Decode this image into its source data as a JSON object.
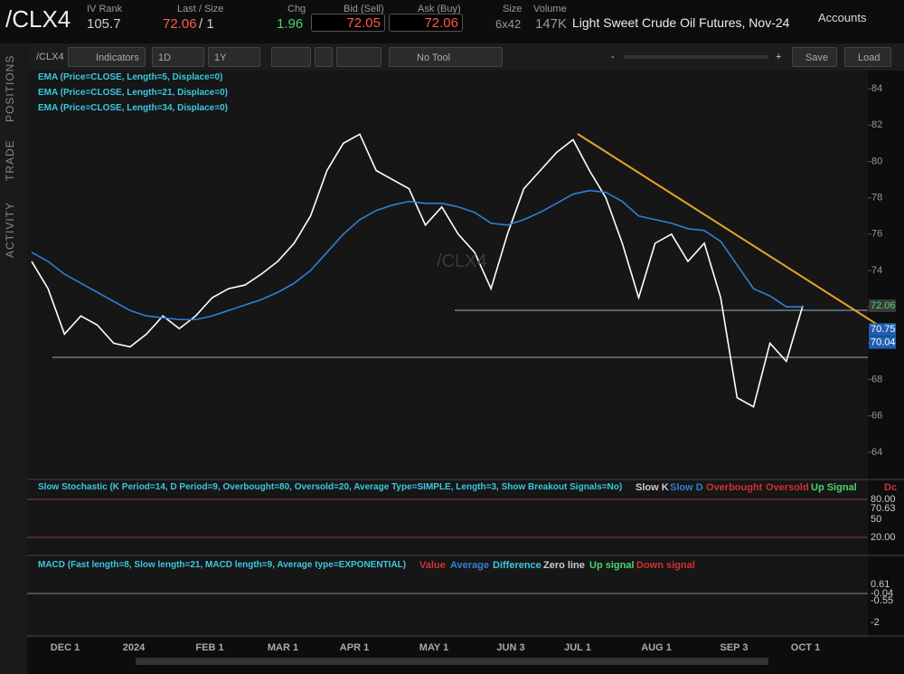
{
  "header": {
    "symbol": "/CLX4",
    "iv_rank_label": "IV Rank",
    "iv_rank": "105.7",
    "last_label": "Last / Size",
    "last": "72.06",
    "size_suffix": "/ 1",
    "chg_label": "Chg",
    "chg": "1.96",
    "bid_label": "Bid (Sell)",
    "bid": "72.05",
    "ask_label": "Ask (Buy)",
    "ask": "72.06",
    "size_label": "Size",
    "size": "6x42",
    "volume_label": "Volume",
    "volume": "147K",
    "description": "Light Sweet Crude Oil Futures, Nov-24",
    "accounts": "Accounts"
  },
  "toolbar": {
    "symbol": "/CLX4",
    "indicators": "Indicators",
    "interval": "1D",
    "range": "1Y",
    "tool": "No Tool",
    "zoom_minus": "-",
    "zoom_plus": "+",
    "save": "Save",
    "load": "Load"
  },
  "sidebar": [
    "POSITIONS",
    "TRADE",
    "ACTIVITY"
  ],
  "studies": [
    "EMA (Price=CLOSE, Length=5, Displace=0)",
    "EMA (Price=CLOSE, Length=21, Displace=0)",
    "EMA (Price=CLOSE, Length=34, Displace=0)"
  ],
  "watermark": "/CLX4",
  "chart_data": {
    "type": "line",
    "ylim": [
      62.9,
      85
    ],
    "yticks": [
      64,
      66,
      68,
      70,
      72,
      74,
      76,
      78,
      80,
      82,
      84
    ],
    "x_labels": [
      "DEC 1",
      "2024",
      "FEB 1",
      "MAR 1",
      "APR 1",
      "MAY 1",
      "JUN 3",
      "JUL 1",
      "AUG 1",
      "SEP 3",
      "OCT 1"
    ],
    "series": [
      {
        "color": "#ffffff",
        "values": [
          74.5,
          73,
          70.5,
          71.5,
          71,
          70,
          69.8,
          70.5,
          71.5,
          70.8,
          71.5,
          72.5,
          73,
          73.2,
          73.8,
          74.5,
          75.5,
          77,
          79.5,
          81,
          81.5,
          79.5,
          79,
          78.5,
          76.5,
          77.5,
          76,
          75,
          73,
          76,
          78.5,
          79.5,
          80.5,
          81.2,
          79.5,
          78,
          75.5,
          72.5,
          75.5,
          76,
          74.5,
          75.5,
          72.5,
          67,
          66.5,
          70,
          69,
          72.06
        ]
      },
      {
        "color": "#2f7fd8",
        "values": [
          75,
          74.5,
          73.8,
          73.3,
          72.8,
          72.3,
          71.8,
          71.5,
          71.4,
          71.3,
          71.3,
          71.5,
          71.8,
          72.1,
          72.4,
          72.8,
          73.3,
          74,
          75,
          76,
          76.8,
          77.3,
          77.6,
          77.8,
          77.7,
          77.7,
          77.5,
          77.2,
          76.6,
          76.5,
          76.8,
          77.2,
          77.7,
          78.2,
          78.4,
          78.3,
          77.8,
          77,
          76.8,
          76.6,
          76.3,
          76.2,
          75.6,
          74.3,
          73,
          72.6,
          72,
          72
        ]
      }
    ],
    "price_tags": [
      {
        "value": 72.06,
        "label": "72.06"
      },
      {
        "value": 70.75,
        "label": "70.75"
      },
      {
        "value": 70.04,
        "label": "70.04"
      }
    ]
  },
  "stochastic": {
    "title": "Slow Stochastic (K Period=14, D Period=9, Overbought=80, Oversold=20, Average Type=SIMPLE, Length=3, Show Breakout Signals=No)",
    "legend": [
      "Slow K",
      "Slow D",
      "Overbought",
      "Oversold",
      "Up Signal",
      "Dc"
    ],
    "axis_labels": [
      "80.00",
      "70.63",
      "50",
      "20.00"
    ]
  },
  "macd": {
    "title": "MACD (Fast length=8, Slow length=21, MACD length=9, Average type=EXPONENTIAL)",
    "legend": [
      "Value",
      "Average",
      "Difference",
      "Zero line",
      "Up signal",
      "Down signal"
    ],
    "axis_labels": [
      "0.61",
      "-0.04",
      "-0.55",
      "-2"
    ]
  }
}
